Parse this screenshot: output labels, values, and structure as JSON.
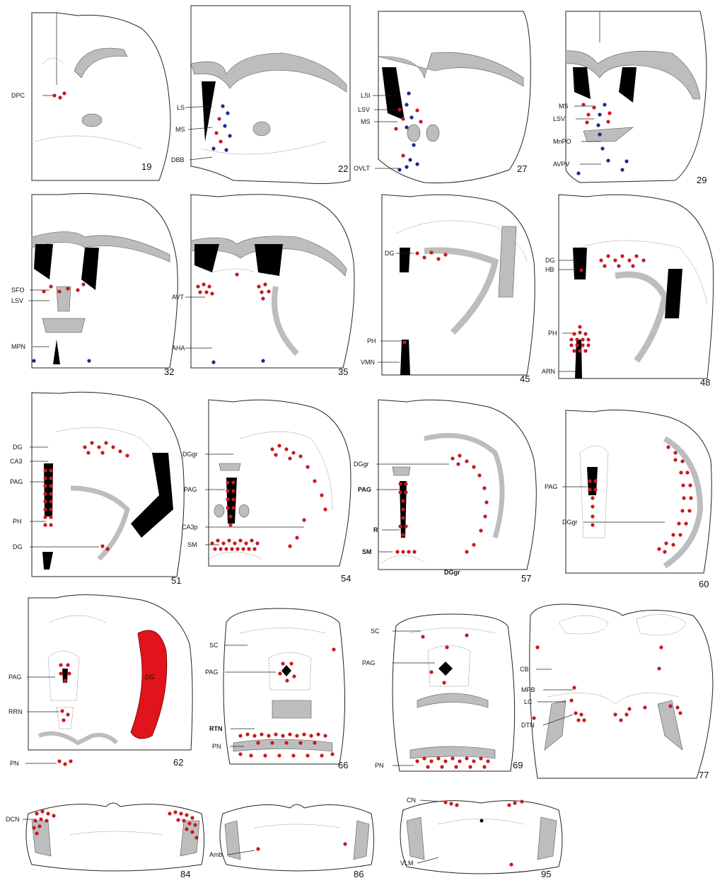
{
  "colors": {
    "red_dot": "#c8191e",
    "blue_dot": "#1b2a8c",
    "white_matter": "#bdbdbd",
    "ventricle": "#000000",
    "dg_highlight": "#e0141a"
  },
  "sections": [
    {
      "number": "19",
      "labels": [
        "DPC"
      ]
    },
    {
      "number": "22",
      "labels": [
        "LS",
        "MS",
        "DBB"
      ]
    },
    {
      "number": "27",
      "labels": [
        "LSI",
        "LSV",
        "MS",
        "OVLT"
      ]
    },
    {
      "number": "29",
      "labels": [
        "MS",
        "LSV",
        "MnPO",
        "AVPV"
      ]
    },
    {
      "number": "32",
      "labels": [
        "SFO",
        "LSV",
        "MPN"
      ]
    },
    {
      "number": "35",
      "labels": [
        "AVT",
        "AHA"
      ]
    },
    {
      "number": "45",
      "labels": [
        "DG",
        "PH",
        "VMN"
      ]
    },
    {
      "number": "48",
      "labels": [
        "DG",
        "HB",
        "PH",
        "ARN"
      ]
    },
    {
      "number": "51",
      "labels": [
        "DG",
        "CA3",
        "PAG",
        "PH",
        "DG"
      ]
    },
    {
      "number": "54",
      "labels": [
        "DGgr",
        "PAG",
        "CA3p",
        "SM"
      ]
    },
    {
      "number": "57",
      "labels": [
        "DGgr",
        "PAG",
        "R",
        "SM",
        "DGgr"
      ]
    },
    {
      "number": "60",
      "labels": [
        "PAG",
        "DGgr"
      ]
    },
    {
      "number": "62",
      "labels": [
        "PAG",
        "RRN",
        "PN",
        "DG"
      ]
    },
    {
      "number": "66",
      "labels": [
        "SC",
        "PAG",
        "RTN",
        "PN"
      ]
    },
    {
      "number": "69",
      "labels": [
        "SC",
        "PAG",
        "PN"
      ]
    },
    {
      "number": "77",
      "labels": [
        "CB",
        "MPB",
        "LC",
        "DTN"
      ]
    },
    {
      "number": "84",
      "labels": [
        "DCN"
      ]
    },
    {
      "number": "86",
      "labels": [
        "Amb"
      ]
    },
    {
      "number": "95",
      "labels": [
        "CN",
        "VLM"
      ]
    }
  ]
}
